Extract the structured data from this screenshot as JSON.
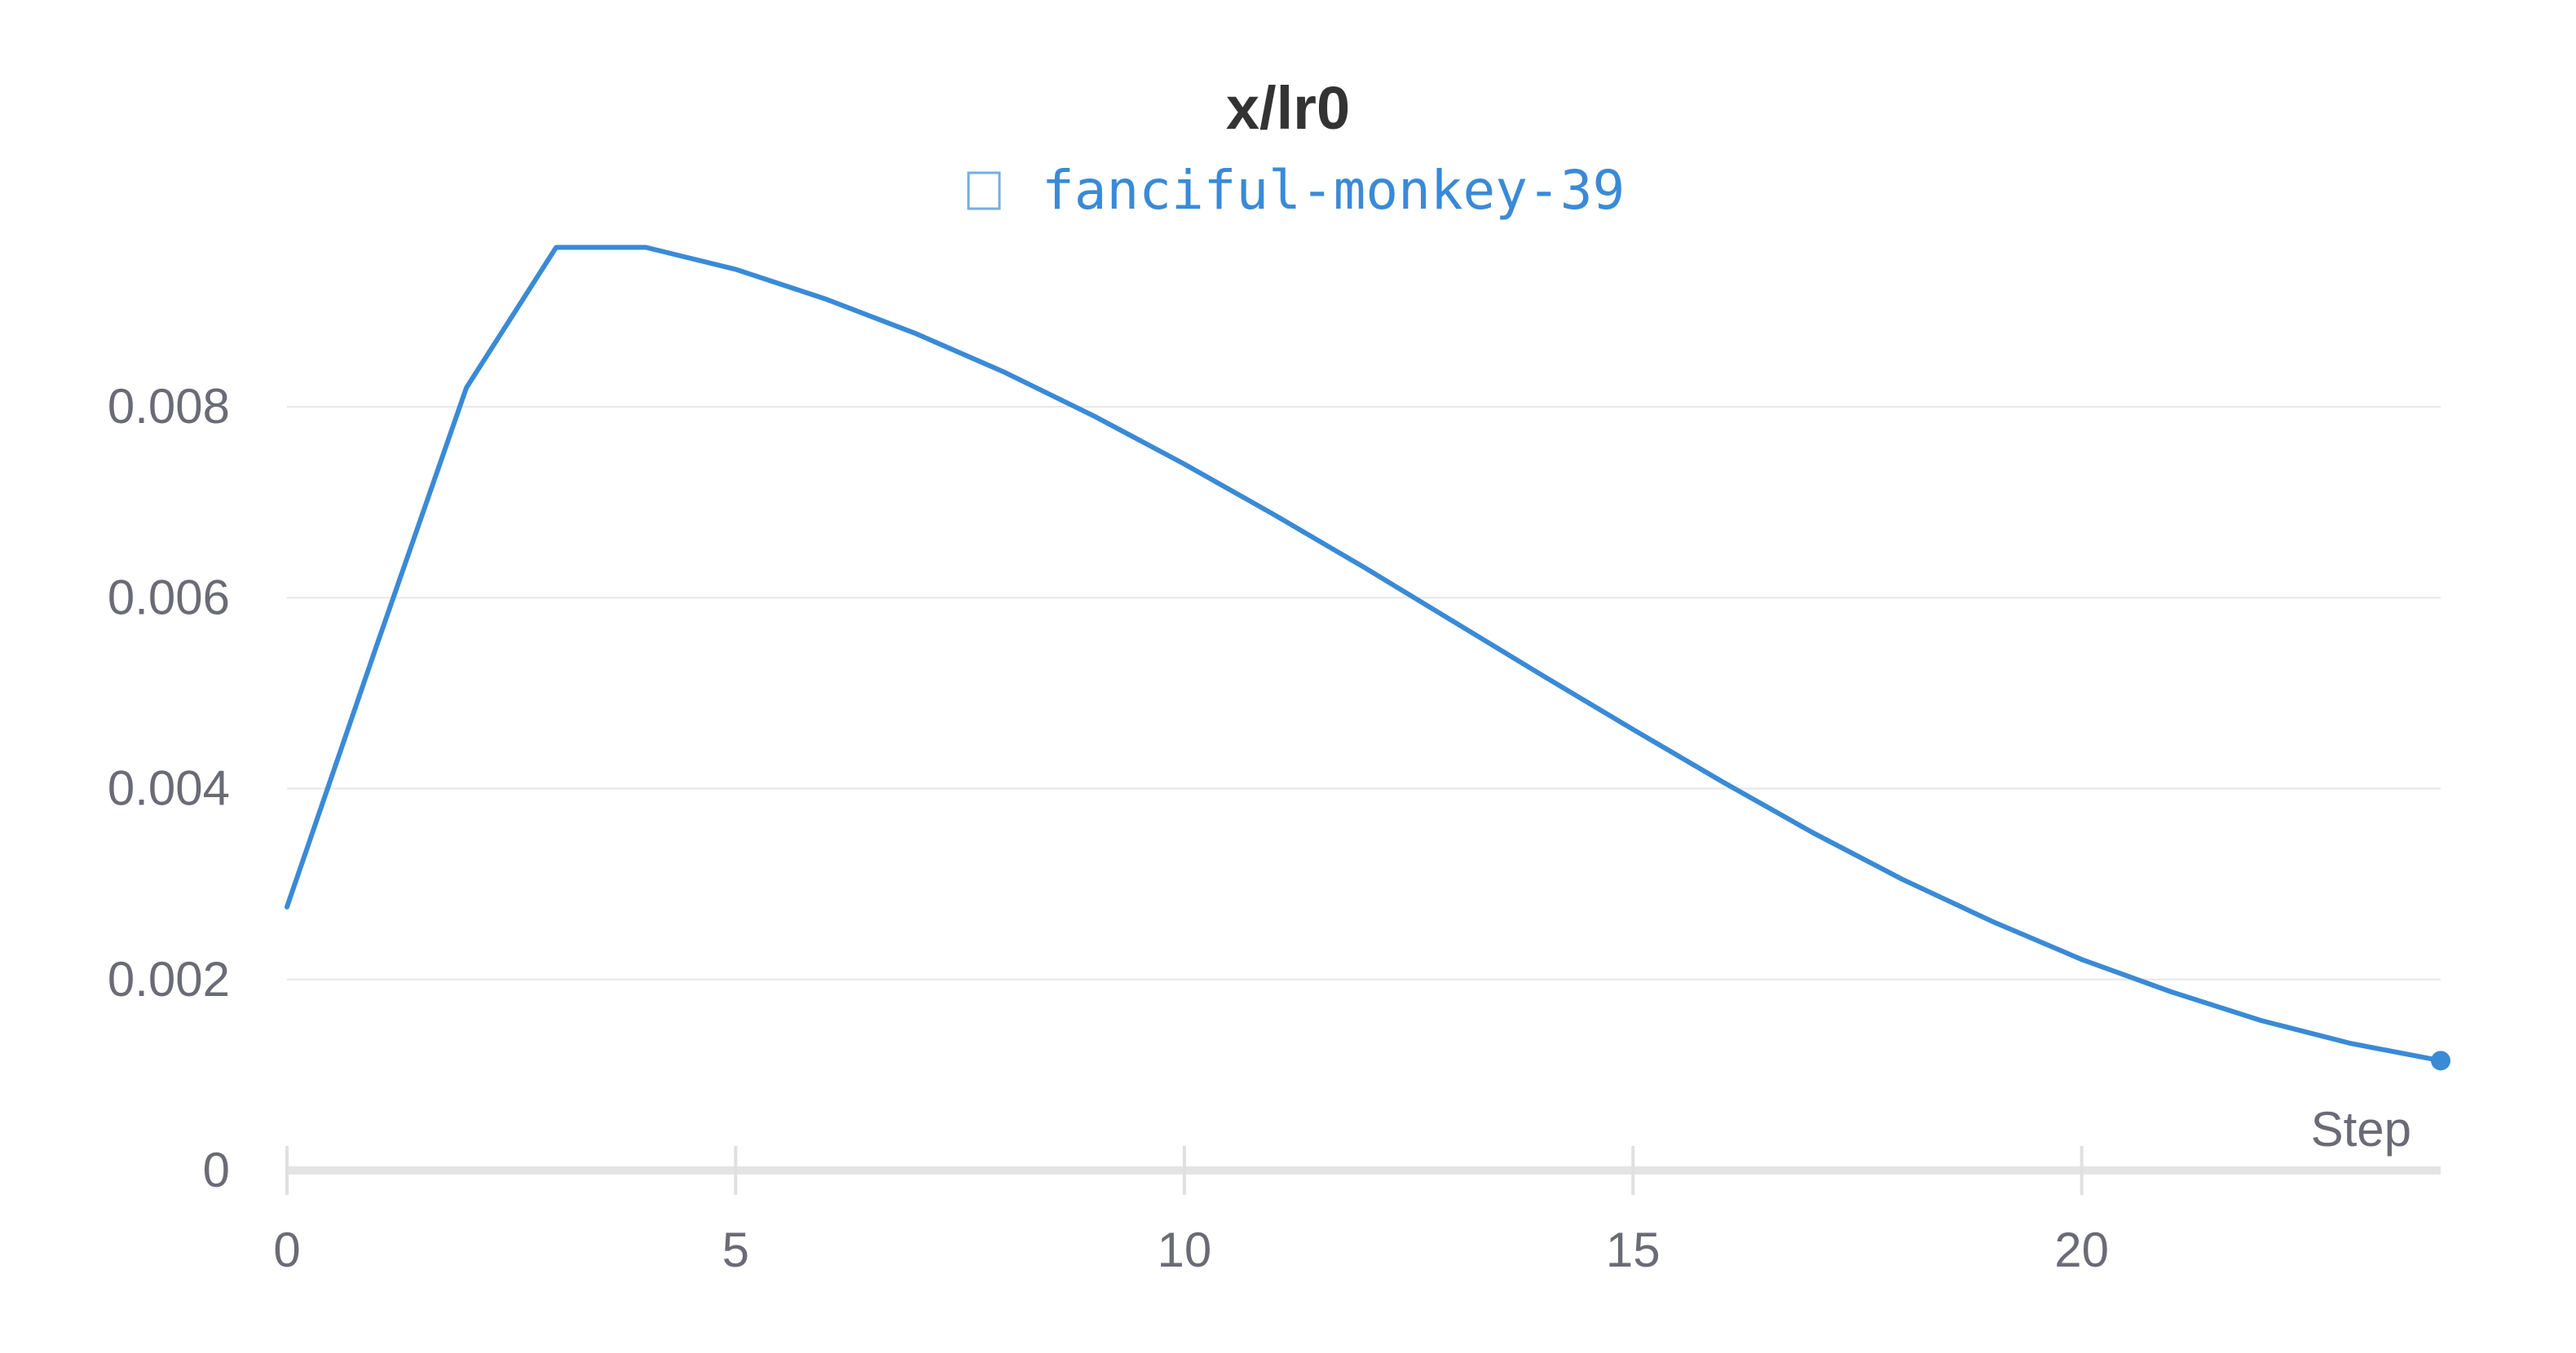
{
  "chart_data": {
    "type": "line",
    "title": "x/lr0",
    "xlabel": "Step",
    "ylabel": "",
    "xlim": [
      0,
      24
    ],
    "ylim": [
      0,
      0.0097
    ],
    "x_ticks": [
      0,
      5,
      10,
      15,
      20
    ],
    "y_ticks": [
      0,
      0.002,
      0.004,
      0.006,
      0.008
    ],
    "y_tick_labels": [
      "0",
      "0.002",
      "0.004",
      "0.006",
      "0.008"
    ],
    "grid": true,
    "legend": "top-center",
    "series": [
      {
        "name": "fanciful-monkey-39",
        "color": "#3a8ad6",
        "x": [
          0,
          1,
          2,
          3,
          4,
          5,
          6,
          7,
          8,
          9,
          10,
          11,
          12,
          13,
          14,
          15,
          16,
          17,
          18,
          19,
          20,
          21,
          22,
          23,
          24
        ],
        "y": [
          0.00276,
          0.0055,
          0.0082,
          0.00967,
          0.00967,
          0.00944,
          0.00913,
          0.00877,
          0.00836,
          0.0079,
          0.0074,
          0.00687,
          0.00632,
          0.00575,
          0.00518,
          0.00462,
          0.00407,
          0.00354,
          0.00305,
          0.00261,
          0.00221,
          0.00187,
          0.00157,
          0.00133,
          0.00115
        ]
      }
    ]
  }
}
